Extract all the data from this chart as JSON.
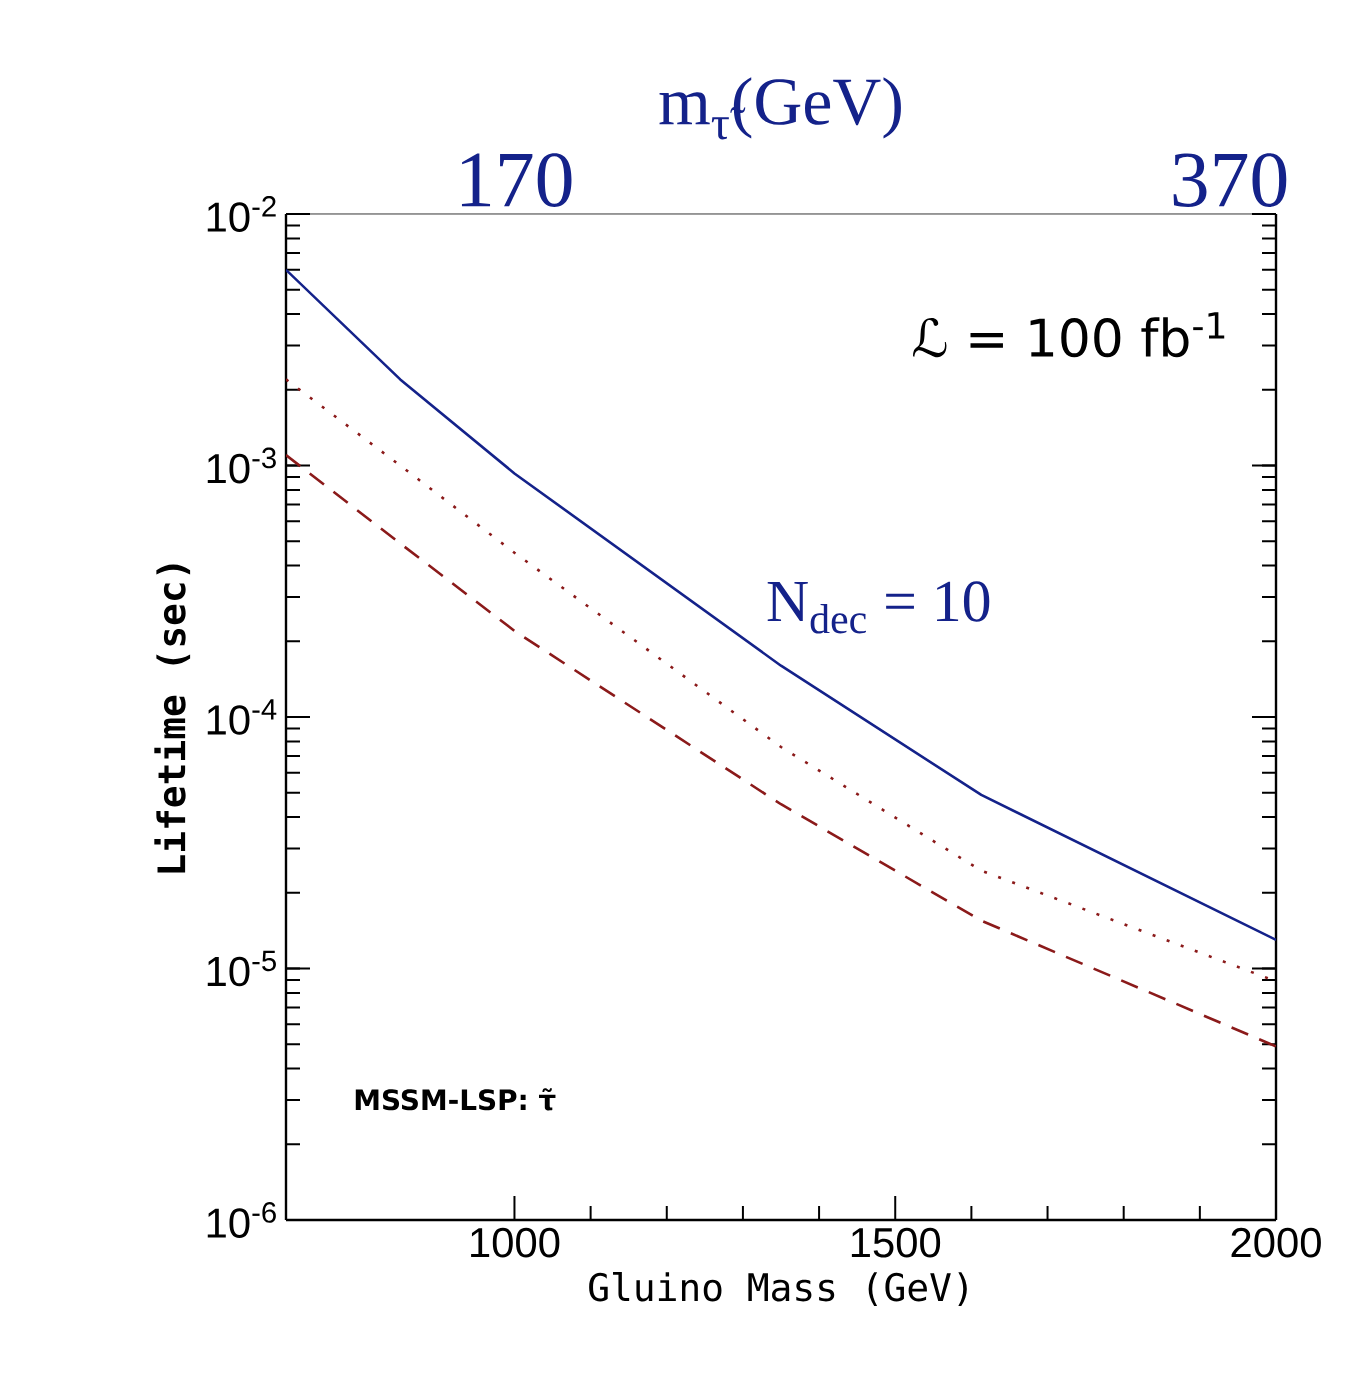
{
  "chart_data": {
    "type": "line",
    "xlabel": "Gluino Mass (GeV)",
    "ylabel": "Lifetime (sec)",
    "x2label": "m$_{τ̃}$(GeV)",
    "xlim": [
      700,
      2000
    ],
    "xticks": [
      1000,
      1500,
      2000
    ],
    "x2lim": [
      106,
      383
    ],
    "x2ticks": [
      170,
      370
    ],
    "ylim": [
      1e-06,
      0.01
    ],
    "yticks": [
      {
        "value": 1e-06,
        "label": "10$^{-6}$"
      },
      {
        "value": 1e-05,
        "label": "10$^{-5}$"
      },
      {
        "value": 0.0001,
        "label": "10$^{-4}$"
      },
      {
        "value": 0.001,
        "label": "10$^{-3}$"
      },
      {
        "value": 0.01,
        "label": "10$^{-2}$"
      }
    ],
    "log": "y",
    "grid": false,
    "legend": false,
    "marker": "none",
    "x": [
      700,
      850,
      1000,
      1350,
      1613,
      2000
    ],
    "series": [
      {
        "name": "N$_{dec}$ = 10",
        "color": "#14228a",
        "line_style": "solid",
        "values": [
          0.006,
          0.0022,
          0.00093,
          0.00016,
          4.9e-05,
          1.3e-05
        ]
      },
      {
        "color": "#8b1a1a",
        "line_style": "dotted",
        "values": [
          0.0022,
          0.001,
          0.00045,
          7.6e-05,
          2.45e-05,
          8.9e-06
        ]
      },
      {
        "color": "#8b1a1a",
        "line_style": "dashed",
        "values": [
          0.0011,
          0.00049,
          0.00022,
          4.5e-05,
          1.55e-05,
          4.9e-06
        ]
      }
    ],
    "annotations": [
      "ℒ = 100 fb$^{-1}$",
      "MSSM-LSP: τ̃"
    ]
  }
}
